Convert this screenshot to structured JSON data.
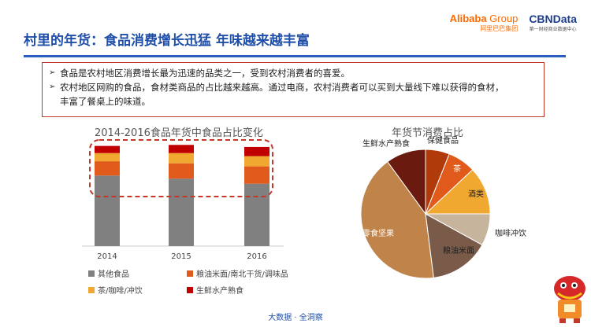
{
  "header": {
    "title": "村里的年货：食品消费增长迅猛  年味越来越丰富",
    "alibaba_main": "Alibaba",
    "alibaba_group": " Group",
    "alibaba_sub": "阿里巴巴集团",
    "cbn_main": "CBNData",
    "cbn_sub": "第一财经商业数据中心"
  },
  "notes": [
    {
      "line1": "食品是农村地区消费增长最为迅速的品类之一，受到农村消费者的喜爱。",
      "line2": ""
    },
    {
      "line1": "农村地区网购的食品，食材类商品的占比越来越高。通过电商，农村消费者可以买到大量线下难以获得的食材，",
      "line2": "丰富了餐桌上的味道。"
    }
  ],
  "footer": "大数据 · 全洞察",
  "colors": {
    "title": "#1f4fa8",
    "highlight": "#c0392b"
  },
  "chart_data": [
    {
      "type": "bar",
      "stacked": true,
      "title": "2014-2016食品年货中食品占比变化",
      "categories": [
        "2014",
        "2015",
        "2016"
      ],
      "series": [
        {
          "name": "其他食品",
          "color": "#808080",
          "values": [
            69,
            66,
            61
          ]
        },
        {
          "name": "粮油米面/南北干货/调味品",
          "color": "#e05a1b",
          "values": [
            14,
            15,
            17
          ]
        },
        {
          "name": "茶/咖啡/冲饮",
          "color": "#f0a830",
          "values": [
            8,
            10,
            10
          ]
        },
        {
          "name": "生鲜水产熟食",
          "color": "#c00000",
          "values": [
            7,
            8,
            9
          ]
        }
      ],
      "ylim": [
        0,
        100
      ],
      "highlight_box": true,
      "legend": "bottom"
    },
    {
      "type": "pie",
      "title": "年货节消费占比",
      "slices": [
        {
          "label": "保健食品",
          "value": 6,
          "color": "#b03a0a"
        },
        {
          "label": "茶",
          "value": 7,
          "color": "#e05a1b"
        },
        {
          "label": "酒类",
          "value": 12,
          "color": "#f0a830"
        },
        {
          "label": "咖啡冲饮",
          "value": 8,
          "color": "#c7b49c"
        },
        {
          "label": "粮油米面",
          "value": 15,
          "color": "#7a5a48"
        },
        {
          "label": "零食坚果",
          "value": 42,
          "color": "#c0844a"
        },
        {
          "label": "生鲜水产熟食",
          "value": 10,
          "color": "#6b1a10"
        }
      ]
    }
  ]
}
